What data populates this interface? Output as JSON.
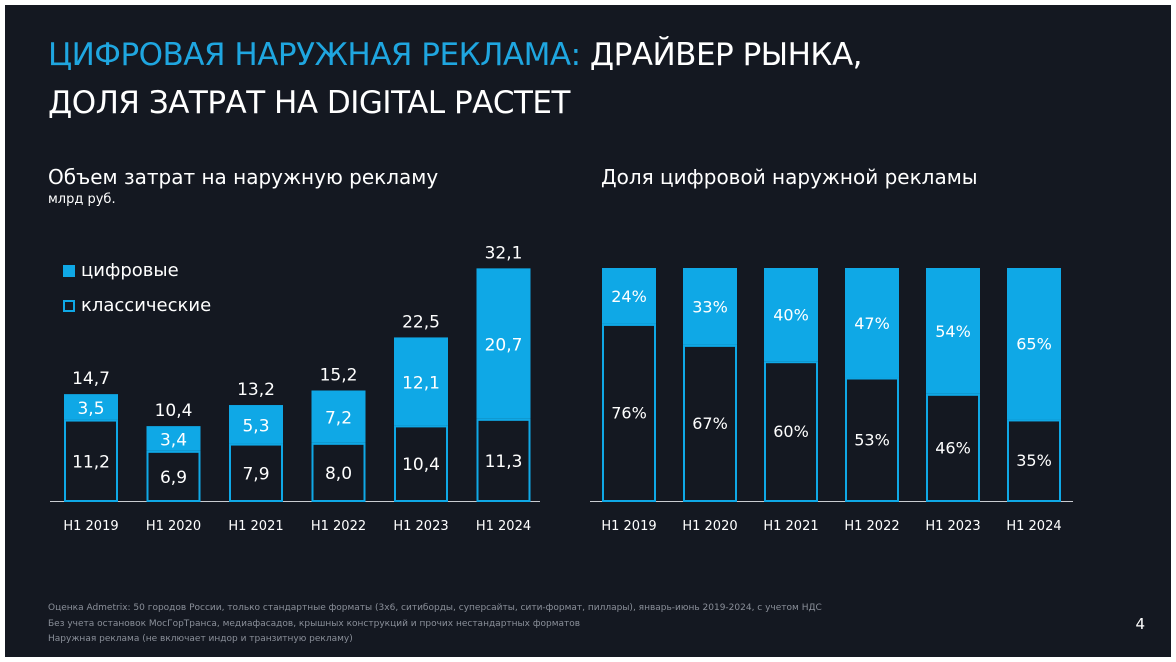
{
  "title": {
    "accent": "ЦИФРОВАЯ НАРУЖНАЯ РЕКЛАМА:",
    "rest": " ДРАЙВЕР РЫНКА,",
    "line2": "ДОЛЯ ЗАТРАТ НА DIGITAL РАСТЕТ"
  },
  "colors": {
    "background": "#141821",
    "accent": "#1fa6e0",
    "digital": "#0fa8e6",
    "classic_outline": "#0fa8e6"
  },
  "legend": {
    "digital": "цифровые",
    "classic": "классические"
  },
  "page_number": "4",
  "footnotes": [
    "Оценка Admetrix: 50 городов России, только стандартные форматы (3х6, ситиборды, суперсайты, сити-формат, пиллары), январь-июнь 2019-2024, с учетом НДС",
    "Без учета остановок МосГорТранса, медиафасадов, крышных конструкций и прочих нестандартных форматов",
    "Наружная реклама (не включает индор и транзитную рекламу)"
  ],
  "chart_data": [
    {
      "type": "bar",
      "stacked": true,
      "title": "Объем затрат на наружную рекламу",
      "unit": "млрд руб.",
      "categories": [
        "H1 2019",
        "H1 2020",
        "H1 2021",
        "H1 2022",
        "H1 2023",
        "H1 2024"
      ],
      "series": [
        {
          "name": "классические",
          "values": [
            11.2,
            6.9,
            7.9,
            8.0,
            10.4,
            11.3
          ],
          "labels": [
            "11,2",
            "6,9",
            "7,9",
            "8,0",
            "10,4",
            "11,3"
          ]
        },
        {
          "name": "цифровые",
          "values": [
            3.5,
            3.4,
            5.3,
            7.2,
            12.1,
            20.7
          ],
          "labels": [
            "3,5",
            "3,4",
            "5,3",
            "7,2",
            "12,1",
            "20,7"
          ]
        }
      ],
      "totals": [
        14.7,
        10.4,
        13.2,
        15.2,
        22.5,
        32.1
      ],
      "total_labels": [
        "14,7",
        "10,4",
        "13,2",
        "15,2",
        "22,5",
        "32,1"
      ],
      "legend_position": "top-left"
    },
    {
      "type": "bar",
      "stacked": true,
      "percent": true,
      "title": "Доля цифровой наружной рекламы",
      "categories": [
        "H1 2019",
        "H1 2020",
        "H1 2021",
        "H1 2022",
        "H1 2023",
        "H1 2024"
      ],
      "series": [
        {
          "name": "классические",
          "values": [
            76,
            67,
            60,
            53,
            46,
            35
          ],
          "labels": [
            "76%",
            "67%",
            "60%",
            "53%",
            "46%",
            "35%"
          ]
        },
        {
          "name": "цифровые",
          "values": [
            24,
            33,
            40,
            47,
            54,
            65
          ],
          "labels": [
            "24%",
            "33%",
            "40%",
            "47%",
            "54%",
            "65%"
          ]
        }
      ]
    }
  ]
}
